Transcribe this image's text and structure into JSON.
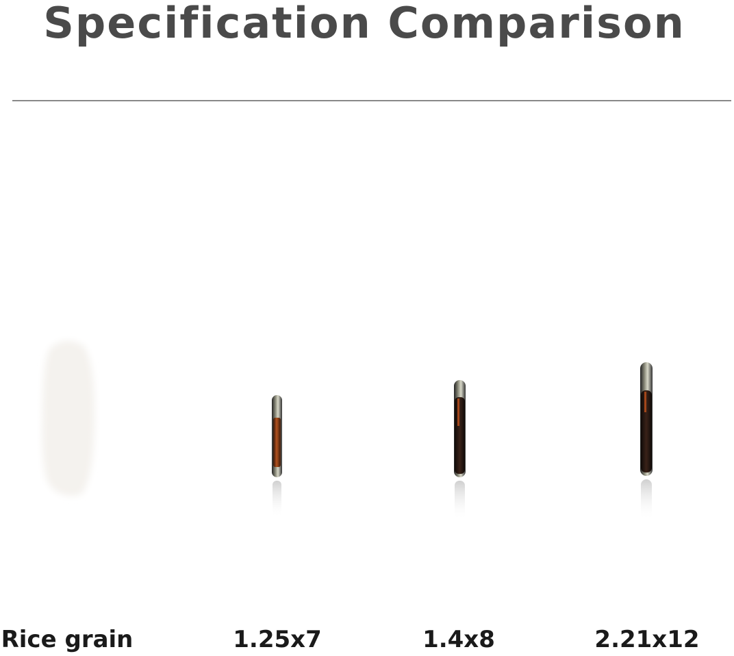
{
  "header": {
    "title": "Specification Comparison"
  },
  "items": [
    "Rice grain",
    "1.25x7",
    "1.4x8",
    "2.21x12"
  ]
}
